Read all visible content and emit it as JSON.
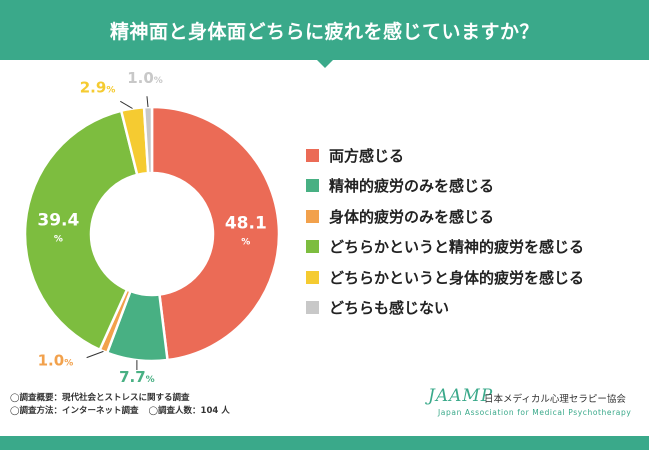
{
  "header": {
    "title": "精神面と身体面どちらに疲れを感じていますか？"
  },
  "chart_data": {
    "type": "pie",
    "title": "精神面と身体面どちらに疲れを感じていますか？",
    "unit": "%",
    "slices": [
      {
        "label": "両方感じる",
        "value": 48.1,
        "color": "#eb6b56"
      },
      {
        "label": "精神的疲労のみを感じる",
        "value": 7.7,
        "color": "#48b083"
      },
      {
        "label": "身体的疲労のみを感じる",
        "value": 1.0,
        "color": "#f2a14c"
      },
      {
        "label": "どちらかというと精神的疲労を感じる",
        "value": 39.4,
        "color": "#7dbd3f"
      },
      {
        "label": "どちらかというと身体的疲労を感じる",
        "value": 2.9,
        "color": "#f5cb31"
      },
      {
        "label": "どちらも感じない",
        "value": 1.0,
        "color": "#c8c8c8"
      }
    ]
  },
  "notes": {
    "line1": "◯調査概要：現代社会とストレスに関する調査",
    "line2a": "◯調査方法：インターネット調査",
    "line2b": "◯調査人数：104 人"
  },
  "logo": {
    "word": "JAAMP",
    "jp": "日本メディカル心理セラピー協会",
    "en": "Japan Association for Medical Psychotherapy"
  },
  "colors": {
    "brand": "#3aa98a"
  }
}
